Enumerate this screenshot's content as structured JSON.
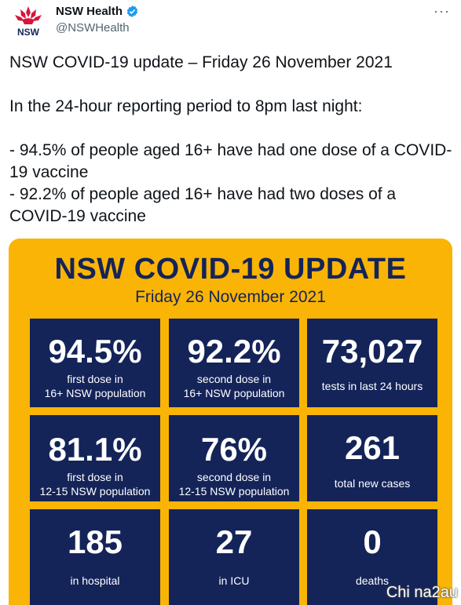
{
  "account": {
    "name": "NSW Health",
    "handle": "@NSWHealth",
    "logo_text": "NSW",
    "more_label": "···"
  },
  "tweet": {
    "line1": "NSW COVID-19 update – Friday 26 November 2021",
    "line2": "In the 24-hour reporting period to 8pm last night:",
    "bullet1": "- 94.5% of people aged 16+ have had one dose of a COVID-19 vaccine",
    "bullet2": "- 92.2% of people aged 16+ have had two doses of a COVID-19 vaccine"
  },
  "card": {
    "title": "NSW COVID-19 UPDATE",
    "date": "Friday 26 November 2021",
    "tiles": [
      {
        "value": "94.5%",
        "line1": "first dose in",
        "line2": "16+ NSW population"
      },
      {
        "value": "92.2%",
        "line1": "second dose in",
        "line2": "16+ NSW population"
      },
      {
        "value": "73,027",
        "line1": "tests in last 24 hours",
        "line2": ""
      },
      {
        "value": "81.1%",
        "line1": "first dose in",
        "line2": "12-15 NSW population"
      },
      {
        "value": "76%",
        "line1": "second dose in",
        "line2": "12-15 NSW population"
      },
      {
        "value": "261",
        "line1": "total new cases",
        "line2": ""
      },
      {
        "value": "185",
        "line1": "in hospital",
        "line2": ""
      },
      {
        "value": "27",
        "line1": "in ICU",
        "line2": ""
      },
      {
        "value": "0",
        "line1": "deaths",
        "line2": ""
      }
    ]
  },
  "watermark": "Chi na2au",
  "colors": {
    "card_background": "#f9b406",
    "navy": "#142459",
    "verified_blue": "#1d9bf0",
    "logo_red": "#d7153a"
  }
}
